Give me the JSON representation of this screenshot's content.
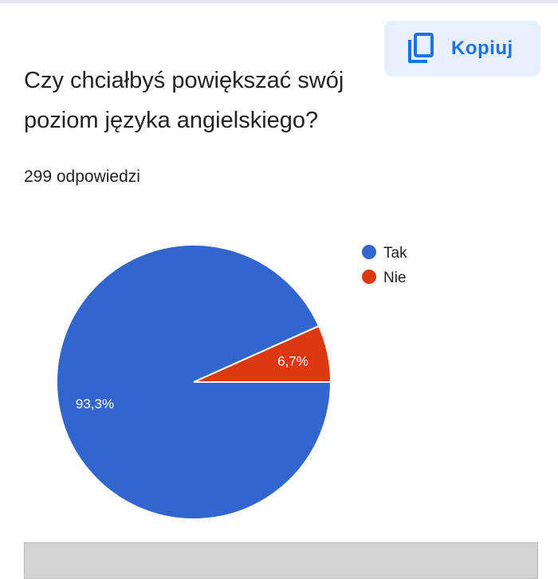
{
  "toolbar": {
    "copy_label": "Kopiuj",
    "copy_icon": "copy-icon",
    "accent_color": "#1a73e8",
    "button_bg": "#e8f0fe"
  },
  "question": {
    "title_line1": "Czy chciałbyś powiększać swój",
    "title_line2": "poziom języka angielskiego?",
    "responses": "299 odpowiedzi"
  },
  "chart_data": {
    "type": "pie",
    "total_responses": 299,
    "slices": [
      {
        "label": "Tak",
        "value": 93.3,
        "display": "93,3%",
        "color": "#3366cc"
      },
      {
        "label": "Nie",
        "value": 6.7,
        "display": "6,7%",
        "color": "#dc3912"
      }
    ],
    "start_angle_deg": 90,
    "direction": "counterclockwise",
    "legend_position": "top-right"
  }
}
